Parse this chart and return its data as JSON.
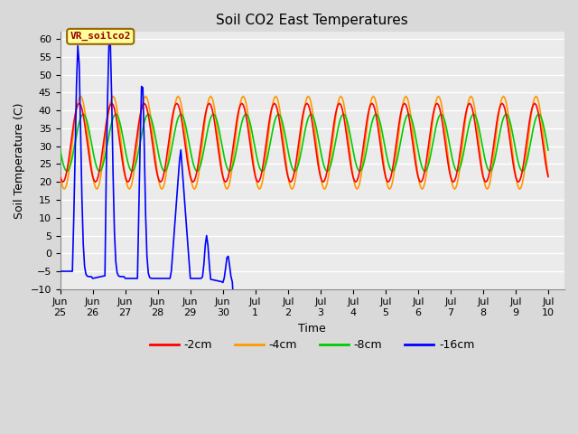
{
  "title": "Soil CO2 East Temperatures",
  "xlabel": "Time",
  "ylabel": "Soil Temperature (C)",
  "ylim": [
    -10,
    62
  ],
  "yticks": [
    -10,
    -5,
    0,
    5,
    10,
    15,
    20,
    25,
    30,
    35,
    40,
    45,
    50,
    55,
    60
  ],
  "colors": {
    "2cm": "#ff0000",
    "4cm": "#ff9900",
    "8cm": "#00cc00",
    "16cm": "#0000ff"
  },
  "legend_labels": [
    "-2cm",
    "-4cm",
    "-8cm",
    "-16cm"
  ],
  "annotation_text": "VR_soilco2",
  "annotation_color": "#990000",
  "annotation_bg": "#ffff99",
  "annotation_border": "#996600",
  "background_color": "#d9d9d9",
  "plot_bg": "#ebebeb",
  "grid_color": "#ffffff",
  "title_fontsize": 11,
  "label_fontsize": 9,
  "tick_fontsize": 8
}
